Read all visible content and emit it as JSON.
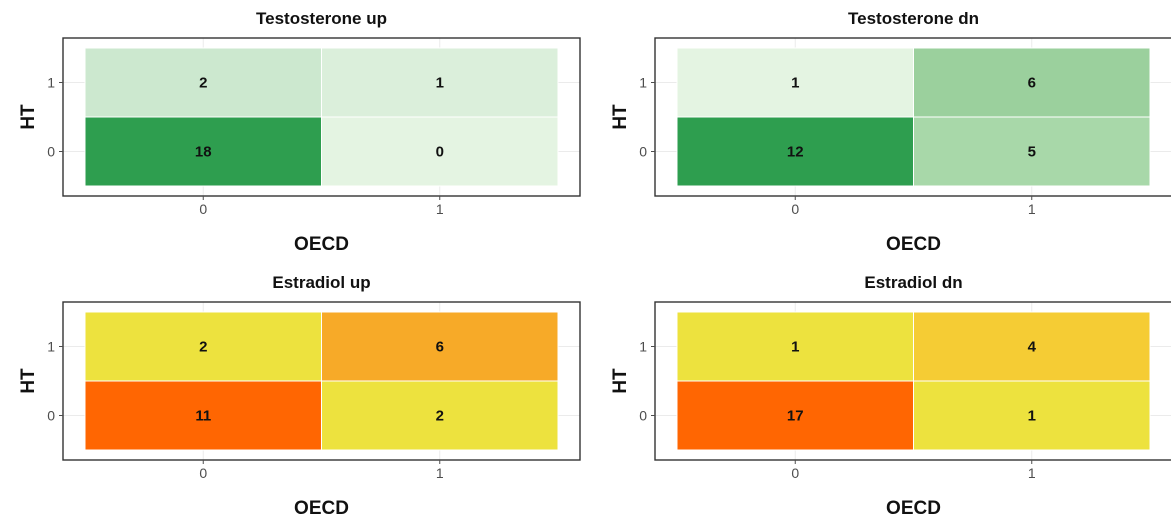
{
  "chart_data": [
    {
      "type": "heatmap",
      "title": "Testosterone up",
      "xlabel": "OECD",
      "ylabel": "HT",
      "x_categories": [
        "0",
        "1"
      ],
      "y_categories": [
        "0",
        "1"
      ],
      "cells": [
        {
          "x": "0",
          "y": "1",
          "value": 2,
          "color": "#cce8cf"
        },
        {
          "x": "1",
          "y": "1",
          "value": 1,
          "color": "#dbefdb"
        },
        {
          "x": "0",
          "y": "0",
          "value": 18,
          "color": "#2e9e4f"
        },
        {
          "x": "1",
          "y": "0",
          "value": 0,
          "color": "#e4f4e2"
        }
      ]
    },
    {
      "type": "heatmap",
      "title": "Testosterone dn",
      "xlabel": "OECD",
      "ylabel": "HT",
      "x_categories": [
        "0",
        "1"
      ],
      "y_categories": [
        "0",
        "1"
      ],
      "cells": [
        {
          "x": "0",
          "y": "1",
          "value": 1,
          "color": "#e4f4e2"
        },
        {
          "x": "1",
          "y": "1",
          "value": 6,
          "color": "#9bd09d"
        },
        {
          "x": "0",
          "y": "0",
          "value": 12,
          "color": "#2e9e4f"
        },
        {
          "x": "1",
          "y": "0",
          "value": 5,
          "color": "#a8d8a9"
        }
      ]
    },
    {
      "type": "heatmap",
      "title": "Estradiol up",
      "xlabel": "OECD",
      "ylabel": "HT",
      "x_categories": [
        "0",
        "1"
      ],
      "y_categories": [
        "0",
        "1"
      ],
      "cells": [
        {
          "x": "0",
          "y": "1",
          "value": 2,
          "color": "#ede23e"
        },
        {
          "x": "1",
          "y": "1",
          "value": 6,
          "color": "#f7aa28"
        },
        {
          "x": "0",
          "y": "0",
          "value": 11,
          "color": "#ff6602"
        },
        {
          "x": "1",
          "y": "0",
          "value": 2,
          "color": "#ede23e"
        }
      ]
    },
    {
      "type": "heatmap",
      "title": "Estradiol dn",
      "xlabel": "OECD",
      "ylabel": "HT",
      "x_categories": [
        "0",
        "1"
      ],
      "y_categories": [
        "0",
        "1"
      ],
      "cells": [
        {
          "x": "0",
          "y": "1",
          "value": 1,
          "color": "#ede23e"
        },
        {
          "x": "1",
          "y": "1",
          "value": 4,
          "color": "#f5cc34"
        },
        {
          "x": "0",
          "y": "0",
          "value": 17,
          "color": "#ff6602"
        },
        {
          "x": "1",
          "y": "0",
          "value": 1,
          "color": "#ede23e"
        }
      ]
    }
  ],
  "colors": {
    "panel_border": "#333333",
    "grid": "#ebebeb",
    "cell_border": "#ffffff",
    "tick": "#4d4d4d",
    "text": "#111111"
  }
}
